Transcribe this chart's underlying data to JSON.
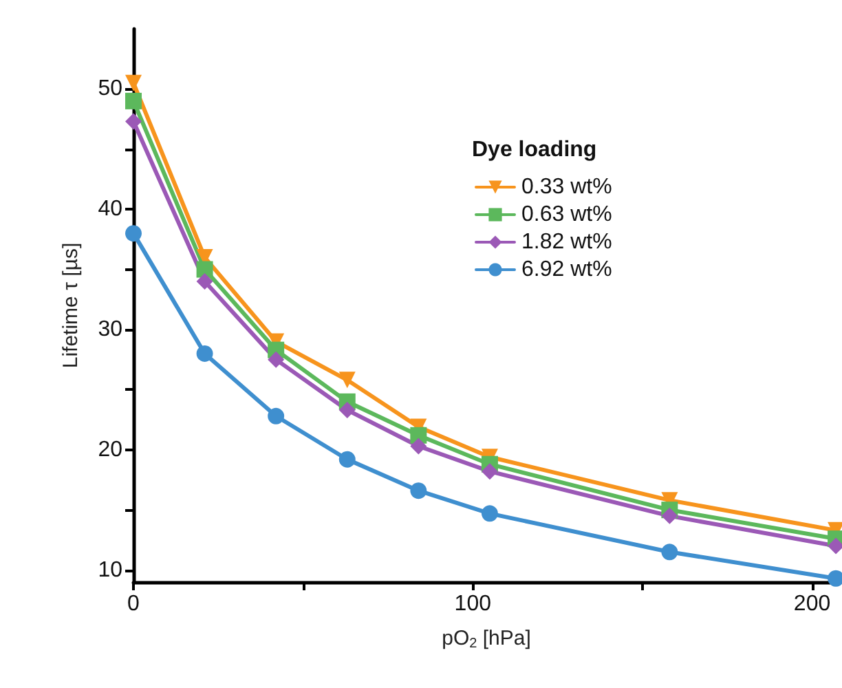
{
  "chart_data": {
    "type": "line",
    "xlabel": "pO$_{2}$ [hPa]",
    "ylabel": "Lifetime τ [µs]",
    "legend_title": "Dye loading",
    "legend": "top right",
    "grid": false,
    "line_style": "solid",
    "x": [
      0,
      21,
      42,
      63,
      84,
      105,
      158,
      207
    ],
    "xlim": [
      0,
      208
    ],
    "xticks": [
      0,
      {
        "value": 50,
        "label": null
      },
      100,
      {
        "value": 150,
        "label": null
      },
      200
    ],
    "ylim": [
      9,
      55
    ],
    "yticks": [
      10,
      {
        "value": 15,
        "label": null
      },
      20,
      {
        "value": 25,
        "label": null
      },
      30,
      {
        "value": 35,
        "label": null
      },
      40,
      {
        "value": 45,
        "label": null
      },
      50
    ],
    "series": [
      {
        "name": "0.33 wt%",
        "color": "#f7941d",
        "marker": "triangle",
        "values": [
          50.5,
          36,
          29,
          25.8,
          21.9,
          19.4,
          15.8,
          13.3
        ]
      },
      {
        "name": "0.63 wt%",
        "color": "#5cb85c",
        "marker": "square",
        "values": [
          49,
          35,
          28.3,
          24,
          21.2,
          18.8,
          15,
          12.6
        ]
      },
      {
        "name": "1.82 wt%",
        "color": "#9b59b6",
        "marker": "diamond",
        "values": [
          47.3,
          34,
          27.5,
          23.3,
          20.3,
          18.2,
          14.5,
          12
        ]
      },
      {
        "name": "6.92 wt%",
        "color": "#3f8fcf",
        "marker": "circle",
        "values": [
          38,
          28,
          22.8,
          19.2,
          16.6,
          14.7,
          11.5,
          9.3
        ]
      }
    ]
  }
}
